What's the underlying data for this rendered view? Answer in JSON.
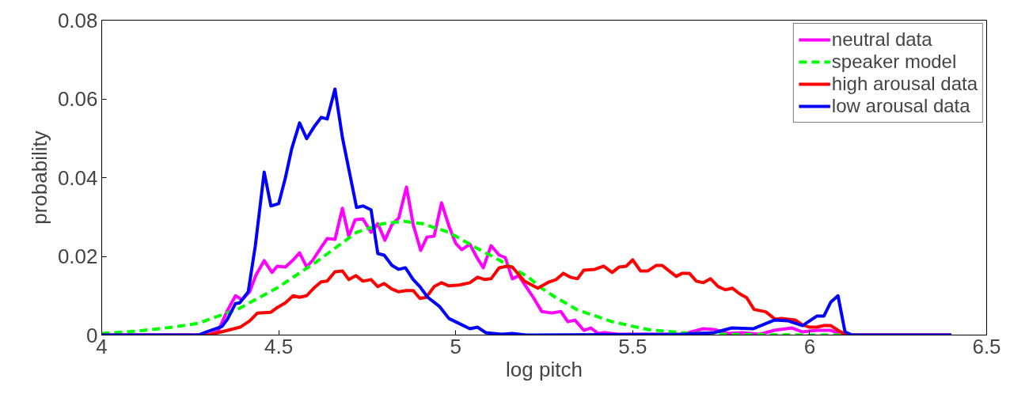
{
  "chart_data": {
    "type": "line",
    "xlabel": "log pitch",
    "ylabel": "probability",
    "xlim": [
      4,
      6.5
    ],
    "ylim": [
      0,
      0.08
    ],
    "xticks": [
      4,
      4.5,
      5,
      5.5,
      6,
      6.5
    ],
    "yticks": [
      0,
      0.02,
      0.04,
      0.06,
      0.08
    ],
    "legend": "top right",
    "grid": false,
    "marker": "none",
    "series": [
      {
        "name": "neutral data",
        "color": "#ff00ff",
        "line_style": "solid",
        "x": [
          4.0,
          4.3,
          4.329,
          4.355,
          4.378,
          4.396,
          4.418,
          4.436,
          4.459,
          4.481,
          4.496,
          4.519,
          4.541,
          4.559,
          4.579,
          4.597,
          4.62,
          4.637,
          4.659,
          4.68,
          4.698,
          4.716,
          4.738,
          4.761,
          4.78,
          4.8,
          4.82,
          4.839,
          4.861,
          4.88,
          4.901,
          4.919,
          4.939,
          4.96,
          4.981,
          5.0,
          5.017,
          5.04,
          5.06,
          5.078,
          5.1,
          5.123,
          5.14,
          5.16,
          5.178,
          5.219,
          5.243,
          5.272,
          5.297,
          5.317,
          5.337,
          5.362,
          5.382,
          5.402,
          5.42,
          5.46,
          5.54,
          5.64,
          5.7,
          5.73,
          5.77,
          5.81,
          5.86,
          5.9,
          5.95,
          5.98,
          6.02,
          6.06,
          6.09,
          6.12,
          6.4
        ],
        "values": [
          0,
          0,
          0.001,
          0.0062,
          0.01,
          0.009,
          0.011,
          0.0153,
          0.0189,
          0.0159,
          0.0175,
          0.0173,
          0.0191,
          0.0209,
          0.0173,
          0.0191,
          0.0223,
          0.0245,
          0.0243,
          0.0322,
          0.0251,
          0.0293,
          0.0295,
          0.0261,
          0.0283,
          0.0241,
          0.0281,
          0.0297,
          0.0376,
          0.0281,
          0.0215,
          0.0249,
          0.0251,
          0.0336,
          0.0277,
          0.0233,
          0.0217,
          0.0231,
          0.0197,
          0.0171,
          0.0227,
          0.0203,
          0.0197,
          0.0143,
          0.0151,
          0.0096,
          0.006,
          0.0056,
          0.006,
          0.0034,
          0.0038,
          0.0012,
          0.0018,
          0.0004,
          0.0006,
          0.0002,
          0.0002,
          0.0002,
          0.0016,
          0.0014,
          0.0004,
          0.0006,
          0.0002,
          0.0012,
          0.0018,
          0.0008,
          0.0012,
          0.0012,
          0.0002,
          0,
          0
        ]
      },
      {
        "name": "speaker model",
        "color": "#00ff00",
        "line_style": "dashed",
        "x": [
          4.0,
          4.1,
          4.2,
          4.273,
          4.385,
          4.496,
          4.608,
          4.72,
          4.794,
          4.854,
          4.906,
          4.981,
          5.055,
          5.13,
          5.205,
          5.243,
          5.28,
          5.344,
          5.442,
          5.543,
          5.64,
          5.742,
          5.85,
          6.0,
          6.1
        ],
        "values": [
          0.0004,
          0.001,
          0.002,
          0.003,
          0.0066,
          0.012,
          0.0187,
          0.0261,
          0.0283,
          0.0289,
          0.0283,
          0.0261,
          0.0223,
          0.0187,
          0.0147,
          0.0119,
          0.0097,
          0.0064,
          0.0034,
          0.0014,
          0.0006,
          0.0002,
          0.0001,
          0,
          0
        ]
      },
      {
        "name": "high arousal data",
        "color": "#ff0000",
        "line_style": "solid",
        "x": [
          4.0,
          4.302,
          4.347,
          4.391,
          4.418,
          4.44,
          4.478,
          4.496,
          4.519,
          4.541,
          4.559,
          4.579,
          4.6,
          4.62,
          4.637,
          4.659,
          4.68,
          4.698,
          4.718,
          4.738,
          4.761,
          4.78,
          4.798,
          4.82,
          4.839,
          4.861,
          4.88,
          4.899,
          4.917,
          4.939,
          4.96,
          4.981,
          5.01,
          5.04,
          5.062,
          5.082,
          5.1,
          5.123,
          5.145,
          5.16,
          5.194,
          5.232,
          5.264,
          5.284,
          5.304,
          5.324,
          5.344,
          5.362,
          5.393,
          5.418,
          5.442,
          5.462,
          5.482,
          5.5,
          5.522,
          5.543,
          5.567,
          5.583,
          5.603,
          5.623,
          5.64,
          5.66,
          5.68,
          5.7,
          5.72,
          5.742,
          5.762,
          5.782,
          5.802,
          5.822,
          5.843,
          5.876,
          5.903,
          5.92,
          5.96,
          5.98,
          6.0,
          6.02,
          6.04,
          6.06,
          6.08,
          6.1,
          6.12,
          6.4
        ],
        "values": [
          0,
          0,
          0.001,
          0.002,
          0.0036,
          0.0056,
          0.0058,
          0.007,
          0.0082,
          0.01,
          0.0096,
          0.01,
          0.012,
          0.0135,
          0.0137,
          0.0161,
          0.0163,
          0.0141,
          0.0151,
          0.0137,
          0.0141,
          0.0123,
          0.0131,
          0.0117,
          0.011,
          0.0113,
          0.0113,
          0.0093,
          0.0096,
          0.0123,
          0.0133,
          0.0125,
          0.0127,
          0.0133,
          0.0147,
          0.0141,
          0.0143,
          0.0171,
          0.0175,
          0.0173,
          0.0137,
          0.0119,
          0.0135,
          0.0141,
          0.0157,
          0.0147,
          0.0143,
          0.0165,
          0.0167,
          0.0175,
          0.0159,
          0.0173,
          0.0175,
          0.0191,
          0.0163,
          0.0163,
          0.0177,
          0.0177,
          0.0163,
          0.0149,
          0.0157,
          0.0157,
          0.0137,
          0.0133,
          0.0143,
          0.0123,
          0.0115,
          0.0119,
          0.0105,
          0.0095,
          0.0065,
          0.0059,
          0.004,
          0.0042,
          0.0038,
          0.0026,
          0.002,
          0.002,
          0.0024,
          0.0024,
          0.0012,
          0.0002,
          0,
          0
        ]
      },
      {
        "name": "low arousal data",
        "color": "#0000ff",
        "line_style": "solid",
        "x": [
          4.0,
          4.273,
          4.302,
          4.34,
          4.355,
          4.378,
          4.39,
          4.414,
          4.434,
          4.459,
          4.478,
          4.5,
          4.519,
          4.537,
          4.559,
          4.579,
          4.6,
          4.62,
          4.637,
          4.659,
          4.68,
          4.698,
          4.72,
          4.738,
          4.761,
          4.78,
          4.798,
          4.82,
          4.839,
          4.858,
          4.88,
          4.899,
          4.921,
          4.955,
          4.981,
          5.004,
          5.04,
          5.062,
          5.085,
          5.13,
          5.16,
          5.2,
          5.64,
          5.73,
          5.78,
          5.84,
          5.9,
          5.94,
          5.98,
          6.02,
          6.04,
          6.06,
          6.08,
          6.1,
          6.12,
          6.4
        ],
        "values": [
          0,
          0,
          0.001,
          0.0022,
          0.004,
          0.008,
          0.0082,
          0.011,
          0.0227,
          0.0414,
          0.0328,
          0.0334,
          0.04,
          0.0474,
          0.0539,
          0.0499,
          0.0529,
          0.0553,
          0.0549,
          0.0625,
          0.0502,
          0.0422,
          0.0324,
          0.0328,
          0.0318,
          0.0207,
          0.0203,
          0.0177,
          0.0167,
          0.0171,
          0.0141,
          0.0123,
          0.0096,
          0.0072,
          0.0042,
          0.0032,
          0.0016,
          0.002,
          0.0006,
          0.0002,
          0.0004,
          0,
          0.0002,
          0.0006,
          0.0018,
          0.0016,
          0.0038,
          0.0036,
          0.0024,
          0.0048,
          0.0048,
          0.0084,
          0.01,
          0.0008,
          0,
          0
        ]
      }
    ]
  }
}
